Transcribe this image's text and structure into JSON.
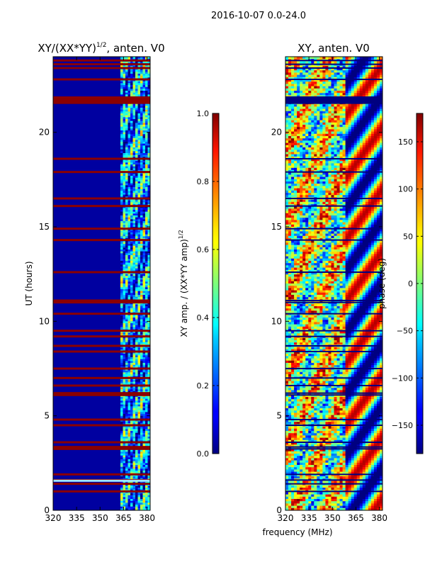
{
  "figure": {
    "suptitle": "2016-10-07 0.0-24.0",
    "xlabel": "frequency (MHz)"
  },
  "chart_data": [
    {
      "type": "heatmap",
      "title": "XY/(XX*YY)",
      "title_exponent": "1/2",
      "title_suffix": ", anten. V0",
      "xlabel": "",
      "ylabel": "UT (hours)",
      "xlim": [
        320,
        382
      ],
      "ylim": [
        0,
        24
      ],
      "xticks": [
        320,
        335,
        350,
        365,
        380
      ],
      "yticks": [
        0,
        5,
        10,
        15,
        20
      ],
      "colorbar": {
        "label": "XY amp. / (XX*YY amp)",
        "label_exponent": "1/2",
        "range": [
          0.0,
          1.0
        ],
        "ticks": [
          "0.0",
          "0.2",
          "0.4",
          "0.6",
          "0.8",
          "1.0"
        ],
        "tick_values": [
          0.0,
          0.2,
          0.4,
          0.6,
          0.8,
          1.0
        ]
      },
      "colormap": "jet",
      "flagged_hours": [
        1.0,
        1.4,
        1.6,
        1.9,
        3.25,
        3.35,
        3.6,
        4.5,
        4.8,
        6.1,
        6.2,
        6.6,
        7.0,
        7.5,
        8.4,
        8.7,
        9.2,
        9.5,
        10.4,
        11.0,
        11.1,
        12.6,
        14.3,
        14.9,
        16.1,
        16.5,
        17.9,
        18.6,
        21.6,
        21.8,
        22.8,
        23.4,
        23.6,
        23.8
      ],
      "bright_band_mhz": [
        363,
        382
      ]
    },
    {
      "type": "heatmap",
      "title": "XY, anten. V0",
      "xlabel": "",
      "ylabel": "",
      "xlim": [
        320,
        382
      ],
      "ylim": [
        0,
        24
      ],
      "xticks": [
        320,
        335,
        350,
        365,
        380
      ],
      "yticks": [
        0,
        5,
        10,
        15,
        20
      ],
      "colorbar": {
        "label": "phase (deg)",
        "range": [
          -180,
          180
        ],
        "ticks": [
          "150",
          "100",
          "50",
          "0",
          "−50",
          "−100",
          "−150"
        ],
        "tick_values": [
          150,
          100,
          50,
          0,
          -50,
          -100,
          -150
        ]
      },
      "colormap": "jet"
    }
  ]
}
